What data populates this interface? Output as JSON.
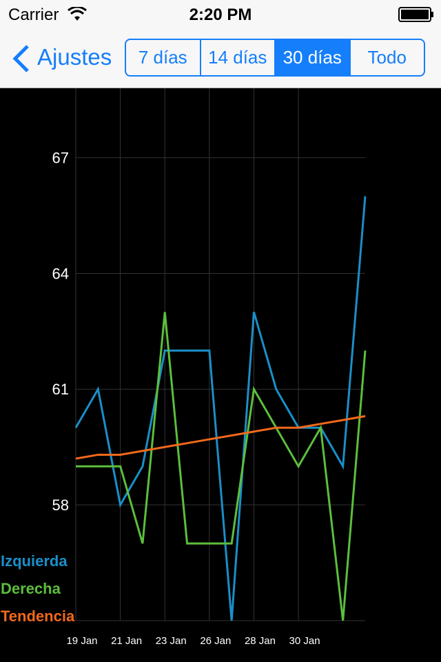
{
  "status_bar": {
    "carrier": "Carrier",
    "time": "2:20 PM"
  },
  "nav": {
    "back": "Ajustes",
    "segments": [
      "7 días",
      "14 días",
      "30 días",
      "Todo"
    ],
    "selected": 2
  },
  "chart_data": {
    "type": "line",
    "categories": [
      "19 Jan",
      null,
      "21 Jan",
      null,
      "23 Jan",
      null,
      "26 Jan",
      null,
      "28 Jan",
      null,
      "30 Jan",
      null,
      null,
      null
    ],
    "series": [
      {
        "name": "Izquierda",
        "color": "#1a8fc9",
        "values": [
          60,
          61,
          58,
          59,
          62,
          62,
          62,
          55,
          63,
          61,
          60,
          60,
          59,
          66
        ]
      },
      {
        "name": "Derecha",
        "color": "#5cbf3c",
        "values": [
          59,
          59,
          59,
          57,
          63,
          57,
          57,
          57,
          61,
          60,
          59,
          60,
          55,
          62
        ]
      },
      {
        "name": "Tendencia",
        "color": "#f2691b",
        "values": [
          59.2,
          59.3,
          59.3,
          59.4,
          59.5,
          59.6,
          59.7,
          59.8,
          59.9,
          60.0,
          60.0,
          60.1,
          60.2,
          60.3
        ]
      }
    ],
    "ylim": [
      55,
      68.8
    ],
    "yticks": [
      58,
      61,
      64,
      67
    ],
    "grid": true,
    "legend": "lower left"
  }
}
